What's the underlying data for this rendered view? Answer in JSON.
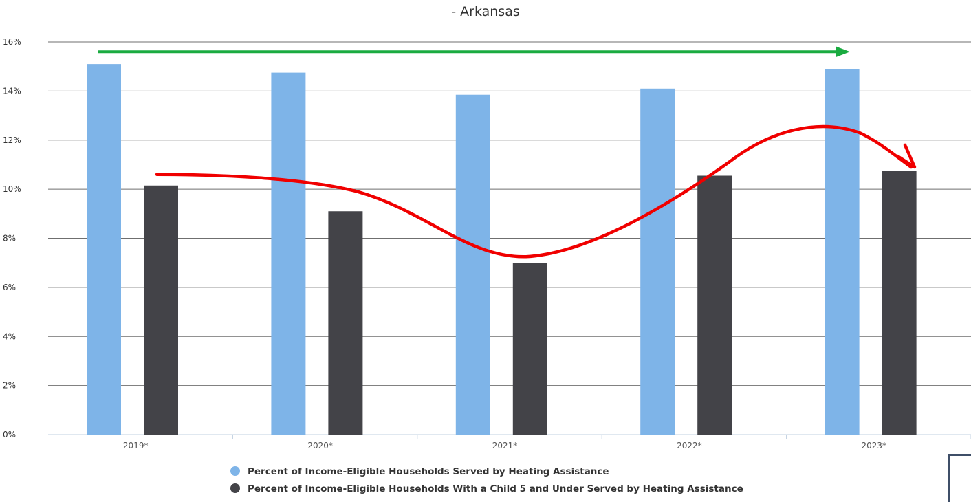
{
  "chart_data": {
    "type": "bar",
    "title": "- Arkansas",
    "xlabel": "",
    "ylabel": "",
    "categories": [
      "2019*",
      "2020*",
      "2021*",
      "2022*",
      "2023*"
    ],
    "series": [
      {
        "name": "Percent of Income-Eligible Households Served by Heating Assistance",
        "color": "#7eb4e8",
        "values": [
          15.1,
          14.75,
          13.85,
          14.1,
          14.9
        ]
      },
      {
        "name": "Percent of Income-Eligible Households With a Child 5 and Under Served by Heating Assistance",
        "color": "#434348",
        "values": [
          10.15,
          9.1,
          7.0,
          10.55,
          10.75
        ]
      }
    ],
    "ylim": [
      0,
      16
    ],
    "yticks": [
      "0%",
      "2%",
      "4%",
      "6%",
      "8%",
      "10%",
      "12%",
      "14%",
      "16%"
    ],
    "grid": true,
    "legend_position": "bottom-center",
    "annotations": [
      {
        "type": "arrow",
        "shape": "straight",
        "color": "#1aab40",
        "meaning": "overall heating assistance level roughly flat 2019-2023"
      },
      {
        "type": "arrow",
        "shape": "curve",
        "color": "#f00000",
        "meaning": "child households dip in 2021 and recover by 2023"
      }
    ]
  }
}
